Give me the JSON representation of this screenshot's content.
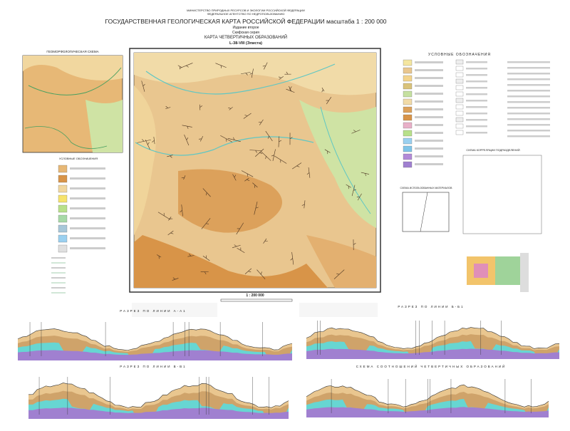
{
  "header": {
    "ministry": "МИНИСТЕРСТВО ПРИРОДНЫХ РЕСУРСОВ И ЭКОЛОГИИ РОССИЙСКОЙ ФЕДЕРАЦИИ",
    "agency": "ФЕДЕРАЛЬНОЕ АГЕНТСТВО ПО НЕДРОПОЛЬЗОВАНИЮ",
    "title": "ГОСУДАРСТВЕННАЯ ГЕОЛОГИЧЕСКАЯ КАРТА РОССИЙСКОЙ ФЕДЕРАЦИИ масштаба 1 : 200 000",
    "edition": "Издание второе",
    "series": "Скифская серия",
    "map_title": "КАРТА ЧЕТВЕРТИЧНЫХ ОБРАЗОВАНИЙ",
    "sheet": "L-38-VIII (Элиста)"
  },
  "main_map": {
    "scale": "1 : 200 000"
  },
  "inset": {
    "title": "ГЕОМОРФОЛОГИЧЕСКАЯ СХЕМА",
    "legend_title": "УСЛОВНЫЕ ОБОЗНАЧЕНИЯ"
  },
  "legend": {
    "title": "УСЛОВНЫЕ ОБОЗНАЧЕНИЯ"
  },
  "schemes": {
    "correlation": "СХЕМА КОРРЕЛЯЦИИ ПОДРАЗДЕЛЕНИЙ",
    "materials": "СХЕМА ИСПОЛЬЗОВАННЫХ МАТЕРИАЛОВ"
  },
  "sections": {
    "s1": "РАЗРЕЗ ПО ЛИНИИ А-А1",
    "s2": "РАЗРЕЗ ПО ЛИНИИ Б-Б1",
    "s3": "РАЗРЕЗ ПО ЛИНИИ В-В1",
    "s4": "СХЕМА СООТНОШЕНИЙ ЧЕТВЕРТИЧНЫХ ОБРАЗОВАНИЙ"
  }
}
